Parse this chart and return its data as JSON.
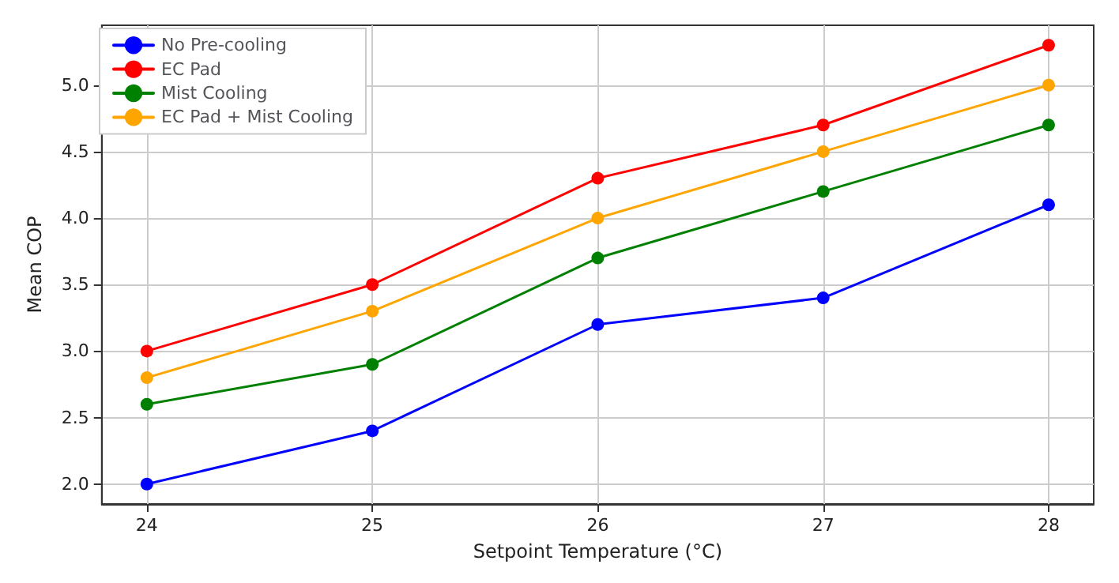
{
  "chart_data": {
    "type": "line",
    "xlabel": "Setpoint Temperature (°C)",
    "ylabel": "Mean COP",
    "x": [
      24,
      25,
      26,
      27,
      28
    ],
    "series": [
      {
        "name": "No Pre-cooling",
        "color": "#0000ff",
        "values": [
          2.0,
          2.4,
          3.2,
          3.4,
          4.1
        ]
      },
      {
        "name": "EC Pad",
        "color": "#ff0000",
        "values": [
          3.0,
          3.5,
          4.3,
          4.7,
          5.3
        ]
      },
      {
        "name": "Mist Cooling",
        "color": "#008000",
        "values": [
          2.6,
          2.9,
          3.7,
          4.2,
          4.7
        ]
      },
      {
        "name": "EC Pad + Mist Cooling",
        "color": "#ffa500",
        "values": [
          2.8,
          3.3,
          4.0,
          4.5,
          5.0
        ]
      }
    ],
    "xlim": [
      23.8,
      28.2
    ],
    "xticks": [
      24,
      25,
      26,
      27,
      28
    ],
    "ylim": [
      1.85,
      5.45
    ],
    "yticks": [
      {
        "value": 2,
        "label": "2.0"
      },
      {
        "value": 2.5,
        "label": "2.5"
      },
      {
        "value": 3,
        "label": "3.0"
      },
      {
        "value": 3.5,
        "label": "3.5"
      },
      {
        "value": 4,
        "label": "4.0"
      },
      {
        "value": 4.5,
        "label": "4.5"
      },
      {
        "value": 5,
        "label": "5.0"
      }
    ],
    "grid": true,
    "legend": "top left",
    "marker": "circle",
    "line_style": "solid"
  }
}
